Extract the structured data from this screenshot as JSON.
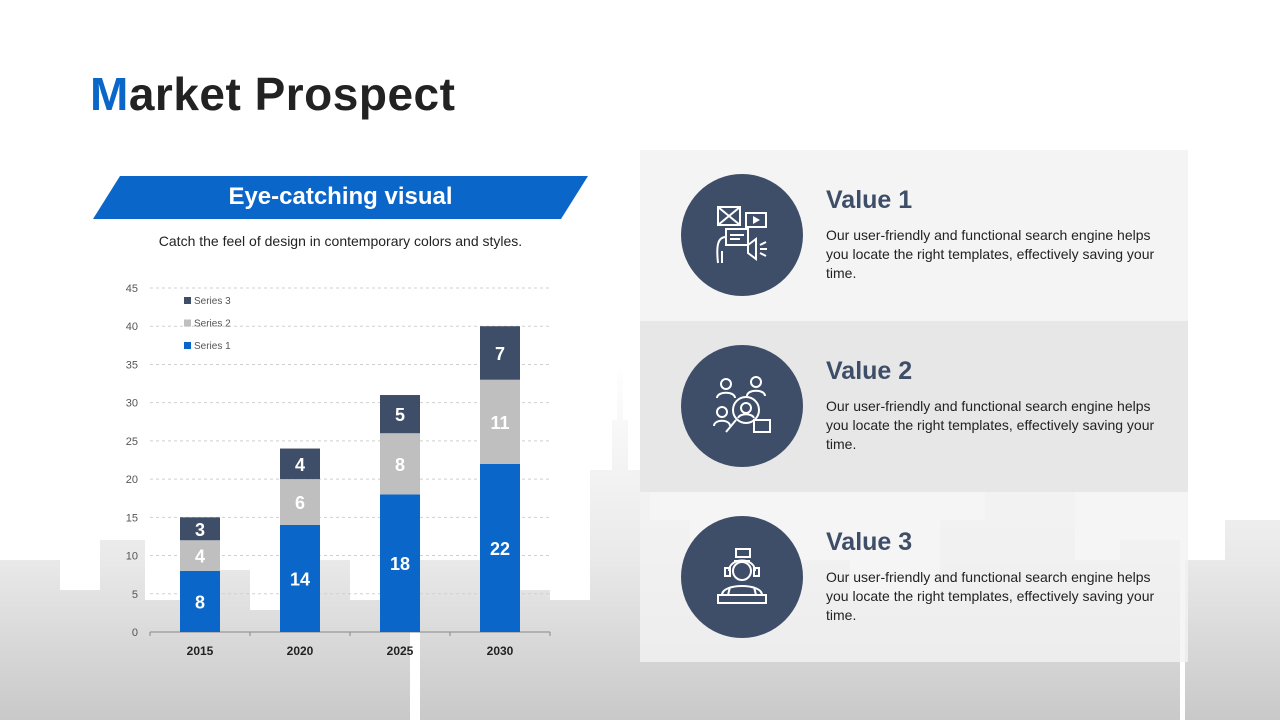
{
  "title": {
    "accent": "M",
    "rest": "arket Prospect"
  },
  "banner": {
    "label": "Eye-catching visual"
  },
  "subtitle": "Catch the feel of design in contemporary colors and styles.",
  "chart_data": {
    "type": "bar",
    "stacked": true,
    "categories": [
      "2015",
      "2020",
      "2025",
      "2030"
    ],
    "series": [
      {
        "name": "Series 1",
        "values": [
          8,
          14,
          18,
          22
        ],
        "color": "#0a66c9"
      },
      {
        "name": "Series 2",
        "values": [
          4,
          6,
          8,
          11
        ],
        "color": "#bfbfbf"
      },
      {
        "name": "Series 3",
        "values": [
          3,
          4,
          5,
          7
        ],
        "color": "#3f4e68"
      }
    ],
    "ylim": [
      0,
      45
    ],
    "yticks": [
      0,
      5,
      10,
      15,
      20,
      25,
      30,
      35,
      40,
      45
    ],
    "grid": true,
    "legend": "top-left",
    "data_labels": true
  },
  "values": [
    {
      "title": "Value 1",
      "text": "Our user-friendly and functional search engine helps you locate the right templates, effectively saving your time.",
      "icon": "media-marketing-icon"
    },
    {
      "title": "Value 2",
      "text": "Our user-friendly and functional search engine helps you locate the right templates, effectively saving your time.",
      "icon": "talent-search-icon"
    },
    {
      "title": "Value 3",
      "text": "Our user-friendly and functional search engine helps you locate the right templates, effectively saving your time.",
      "icon": "support-agent-icon"
    }
  ],
  "colors": {
    "accent": "#0a66c9",
    "dark": "#3f4e68",
    "gray": "#bfbfbf"
  }
}
